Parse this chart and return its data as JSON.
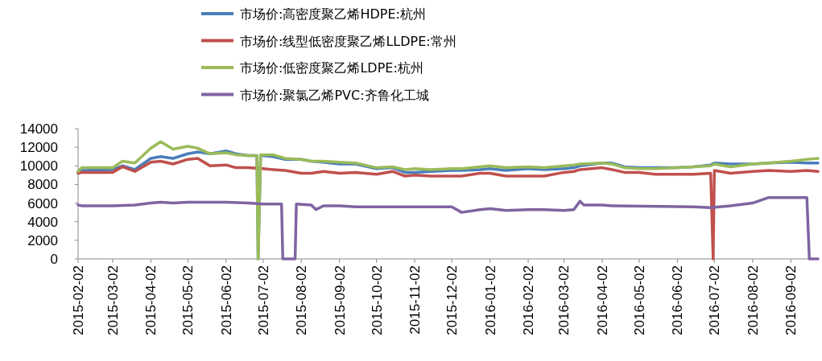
{
  "chart_data": {
    "type": "line",
    "legend": "top",
    "marker": "none",
    "line_style": "solid",
    "grid": false,
    "xlim": [
      "2015-02-02",
      "2016-09-24"
    ],
    "ylim": [
      0,
      14000
    ],
    "yticks": [
      0,
      2000,
      4000,
      6000,
      8000,
      10000,
      12000,
      14000
    ],
    "xticks": [
      "2015-02-02",
      "2015-03-02",
      "2015-04-02",
      "2015-05-02",
      "2015-06-02",
      "2015-07-02",
      "2015-08-02",
      "2015-09-02",
      "2015-10-02",
      "2015-11-02",
      "2015-12-02",
      "2016-01-02",
      "2016-02-02",
      "2016-03-02",
      "2016-04-02",
      "2016-05-02",
      "2016-06-02",
      "2016-07-02",
      "2016-08-02",
      "2016-09-02"
    ],
    "series": [
      {
        "name": "市场价:高密度聚乙烯HDPE:杭州",
        "color": "#4a7ebb",
        "x": [
          "2015-02-02",
          "2015-02-05",
          "2015-03-02",
          "2015-03-10",
          "2015-03-20",
          "2015-04-02",
          "2015-04-10",
          "2015-04-20",
          "2015-05-02",
          "2015-05-10",
          "2015-05-20",
          "2015-06-02",
          "2015-06-10",
          "2015-06-20",
          "2015-06-27",
          "2015-06-28",
          "2015-06-30",
          "2015-07-02",
          "2015-07-10",
          "2015-07-20",
          "2015-08-02",
          "2015-08-10",
          "2015-08-20",
          "2015-09-02",
          "2015-09-15",
          "2015-10-02",
          "2015-10-15",
          "2015-10-25",
          "2015-11-02",
          "2015-11-15",
          "2015-12-02",
          "2015-12-10",
          "2015-12-25",
          "2016-01-02",
          "2016-01-15",
          "2016-02-02",
          "2016-02-15",
          "2016-03-02",
          "2016-03-10",
          "2016-03-15",
          "2016-04-02",
          "2016-04-10",
          "2016-04-20",
          "2016-05-02",
          "2016-05-15",
          "2016-06-02",
          "2016-06-15",
          "2016-06-29",
          "2016-07-02",
          "2016-07-15",
          "2016-08-02",
          "2016-08-15",
          "2016-09-02",
          "2016-09-15",
          "2016-09-24"
        ],
        "values": [
          9300,
          9500,
          9600,
          10000,
          9600,
          10800,
          11000,
          10800,
          11300,
          11500,
          11300,
          11600,
          11300,
          11100,
          11100,
          0,
          11100,
          11100,
          11000,
          10700,
          10700,
          10500,
          10400,
          10200,
          10200,
          9700,
          9800,
          9300,
          9300,
          9400,
          9500,
          9500,
          9600,
          9700,
          9500,
          9700,
          9600,
          9700,
          9800,
          10000,
          10300,
          10300,
          9900,
          9800,
          9800,
          9800,
          9900,
          10100,
          10300,
          10200,
          10200,
          10300,
          10400,
          10300,
          10300
        ]
      },
      {
        "name": "市场价:线型低密度聚乙烯LLDPE:常州",
        "color": "#c0504d",
        "x": [
          "2015-02-02",
          "2015-02-05",
          "2015-03-02",
          "2015-03-10",
          "2015-03-20",
          "2015-04-02",
          "2015-04-10",
          "2015-04-20",
          "2015-05-02",
          "2015-05-10",
          "2015-05-20",
          "2015-06-02",
          "2015-06-10",
          "2015-06-20",
          "2015-07-02",
          "2015-07-10",
          "2015-07-20",
          "2015-08-02",
          "2015-08-10",
          "2015-08-20",
          "2015-09-02",
          "2015-09-15",
          "2015-10-02",
          "2015-10-15",
          "2015-10-25",
          "2015-11-02",
          "2015-11-15",
          "2015-12-02",
          "2015-12-10",
          "2015-12-25",
          "2016-01-02",
          "2016-01-15",
          "2016-02-02",
          "2016-02-15",
          "2016-03-02",
          "2016-03-10",
          "2016-03-15",
          "2016-04-02",
          "2016-04-10",
          "2016-04-20",
          "2016-05-02",
          "2016-05-15",
          "2016-06-02",
          "2016-06-15",
          "2016-06-29",
          "2016-07-01",
          "2016-07-02",
          "2016-07-15",
          "2016-08-02",
          "2016-08-15",
          "2016-09-02",
          "2016-09-15",
          "2016-09-24"
        ],
        "values": [
          9200,
          9300,
          9300,
          9900,
          9400,
          10400,
          10500,
          10200,
          10700,
          10800,
          10000,
          10100,
          9800,
          9800,
          9700,
          9600,
          9500,
          9200,
          9200,
          9400,
          9200,
          9300,
          9100,
          9400,
          8900,
          9000,
          8900,
          8900,
          8900,
          9200,
          9200,
          8900,
          8900,
          8900,
          9300,
          9400,
          9600,
          9800,
          9600,
          9300,
          9300,
          9100,
          9100,
          9100,
          9200,
          0,
          9500,
          9200,
          9400,
          9500,
          9400,
          9500,
          9400
        ]
      },
      {
        "name": "市场价:低密度聚乙烯LDPE:杭州",
        "color": "#9bbb59",
        "x": [
          "2015-02-02",
          "2015-02-05",
          "2015-03-02",
          "2015-03-10",
          "2015-03-20",
          "2015-04-02",
          "2015-04-10",
          "2015-04-20",
          "2015-05-02",
          "2015-05-10",
          "2015-05-20",
          "2015-06-02",
          "2015-06-10",
          "2015-06-20",
          "2015-06-27",
          "2015-06-28",
          "2015-06-30",
          "2015-07-02",
          "2015-07-10",
          "2015-07-20",
          "2015-08-02",
          "2015-08-10",
          "2015-08-20",
          "2015-09-02",
          "2015-09-15",
          "2015-10-02",
          "2015-10-15",
          "2015-10-25",
          "2015-11-02",
          "2015-11-15",
          "2015-12-02",
          "2015-12-10",
          "2015-12-25",
          "2016-01-02",
          "2016-01-15",
          "2016-02-02",
          "2016-02-15",
          "2016-03-02",
          "2016-03-10",
          "2016-03-15",
          "2016-04-02",
          "2016-04-10",
          "2016-04-20",
          "2016-05-02",
          "2016-05-15",
          "2016-06-02",
          "2016-06-15",
          "2016-06-29",
          "2016-07-02",
          "2016-07-15",
          "2016-08-02",
          "2016-08-15",
          "2016-09-02",
          "2016-09-15",
          "2016-09-24"
        ],
        "values": [
          9400,
          9800,
          9800,
          10500,
          10300,
          11900,
          12600,
          11800,
          12100,
          11900,
          11300,
          11400,
          11200,
          11100,
          11100,
          0,
          11200,
          11200,
          11200,
          10800,
          10700,
          10500,
          10500,
          10400,
          10300,
          9800,
          9900,
          9600,
          9700,
          9600,
          9700,
          9700,
          9900,
          10000,
          9800,
          9900,
          9800,
          10000,
          10100,
          10200,
          10300,
          10200,
          9800,
          9700,
          9700,
          9800,
          9900,
          10000,
          10200,
          9900,
          10200,
          10300,
          10500,
          10700,
          10800
        ]
      },
      {
        "name": "市场价:聚氯乙烯PVC:齐鲁化工城",
        "color": "#8064a2",
        "x": [
          "2015-02-02",
          "2015-02-05",
          "2015-03-02",
          "2015-03-20",
          "2015-04-02",
          "2015-04-10",
          "2015-04-20",
          "2015-05-02",
          "2015-06-02",
          "2015-06-20",
          "2015-07-02",
          "2015-07-17",
          "2015-07-18",
          "2015-07-28",
          "2015-07-29",
          "2015-08-10",
          "2015-08-14",
          "2015-08-20",
          "2015-09-02",
          "2015-09-15",
          "2015-10-15",
          "2015-11-02",
          "2015-12-02",
          "2015-12-10",
          "2015-12-25",
          "2016-01-02",
          "2016-01-15",
          "2016-02-02",
          "2016-02-15",
          "2016-03-02",
          "2016-03-10",
          "2016-03-15",
          "2016-03-18",
          "2016-04-02",
          "2016-04-10",
          "2016-06-15",
          "2016-06-29",
          "2016-07-15",
          "2016-08-02",
          "2016-08-15",
          "2016-09-02",
          "2016-09-15",
          "2016-09-17",
          "2016-09-24"
        ],
        "values": [
          5800,
          5700,
          5700,
          5800,
          6000,
          6100,
          6000,
          6100,
          6100,
          6000,
          5900,
          5900,
          0,
          0,
          5900,
          5800,
          5300,
          5700,
          5700,
          5600,
          5600,
          5600,
          5600,
          5000,
          5300,
          5400,
          5200,
          5300,
          5300,
          5200,
          5300,
          6200,
          5800,
          5800,
          5700,
          5600,
          5500,
          5700,
          6000,
          6600,
          6600,
          6600,
          0,
          0
        ]
      }
    ]
  }
}
